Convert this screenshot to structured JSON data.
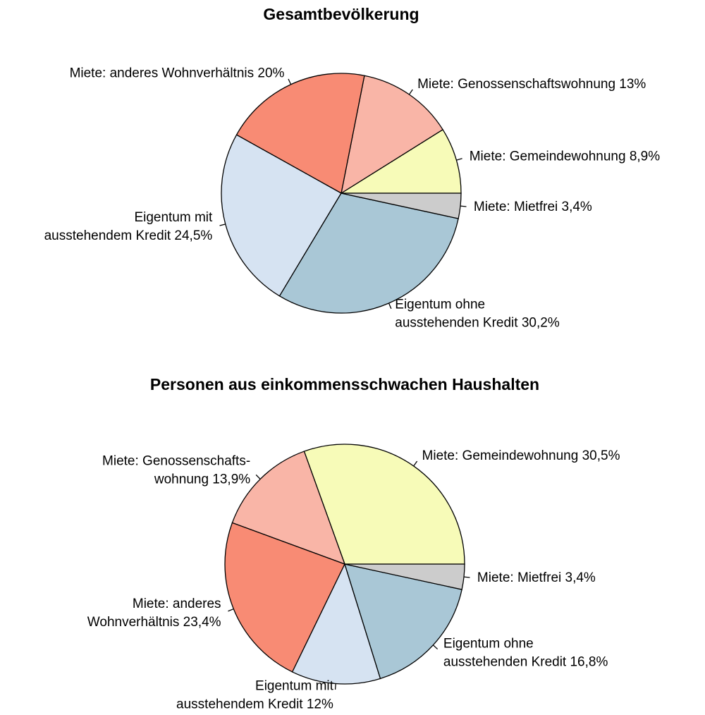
{
  "chart_data": [
    {
      "type": "pie",
      "title": "Gesamtbevölkerung",
      "labels": [
        [
          "Miete: Gemeindewohnung 8,9%"
        ],
        [
          "Miete: Genossenschaftswohnung 13%"
        ],
        [
          "Miete: anderes Wohnverhältnis 20%"
        ],
        [
          "Eigentum mit",
          "ausstehendem Kredit 24,5%"
        ],
        [
          "Eigentum ohne",
          "ausstehenden Kredit 30,2%"
        ],
        [
          "Miete: Mietfrei 3,4%"
        ]
      ],
      "values": [
        8.9,
        13,
        20,
        24.5,
        30.2,
        3.4
      ],
      "colors": [
        "#F7FBB8",
        "#F9B5A7",
        "#F88B74",
        "#D6E3F2",
        "#A9C7D6",
        "#CCCCCC"
      ]
    },
    {
      "type": "pie",
      "title": "Personen aus einkommensschwachen Haushalten",
      "labels": [
        [
          "Miete: Gemeindewohnung 30,5%"
        ],
        [
          "Miete: Genossenschafts-",
          "wohnung 13,9%"
        ],
        [
          "Miete: anderes",
          "Wohnverhältnis 23,4%"
        ],
        [
          "Eigentum mit",
          "ausstehendem Kredit 12%"
        ],
        [
          "Eigentum ohne",
          "ausstehenden Kredit 16,8%"
        ],
        [
          "Miete: Mietfrei 3,4%"
        ]
      ],
      "values": [
        30.5,
        13.9,
        23.4,
        12,
        16.8,
        3.4
      ],
      "colors": [
        "#F7FBB8",
        "#F9B5A7",
        "#F88B74",
        "#D6E3F2",
        "#A9C7D6",
        "#CCCCCC"
      ]
    }
  ]
}
